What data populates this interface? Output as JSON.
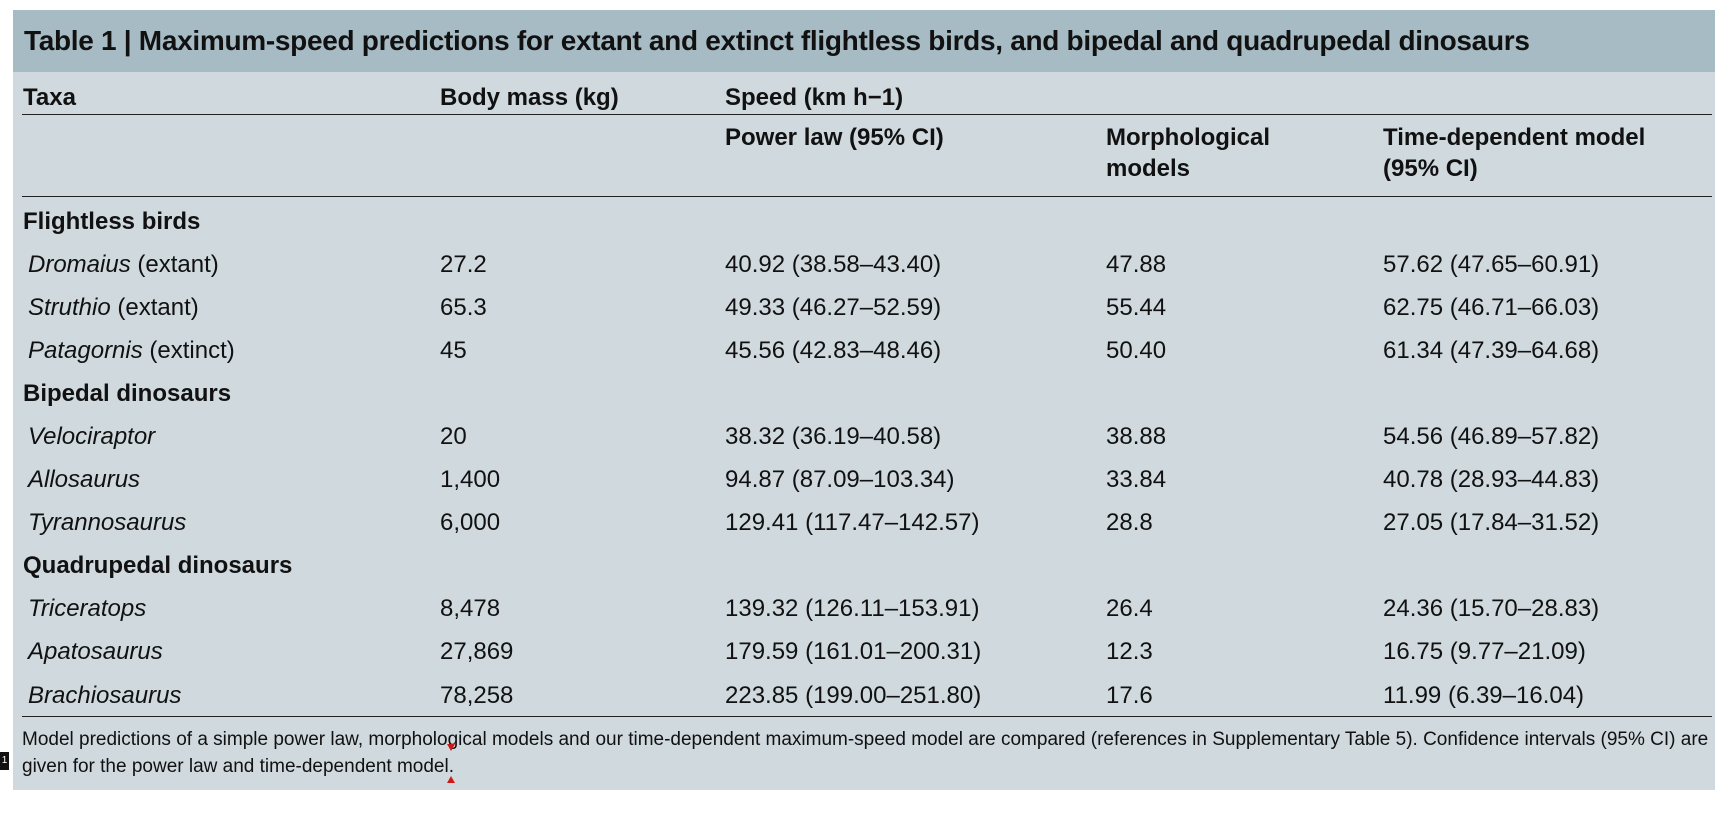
{
  "table": {
    "title": "Table 1 | Maximum-speed predictions for extant and extinct flightless birds, and bipedal and quadrupedal dinosaurs",
    "headers": {
      "taxa": "Taxa",
      "body_mass": "Body mass (kg)",
      "speed": "Speed (km h−1)",
      "power_law": "Power law (95% CI)",
      "morph_line1": "Morphological",
      "morph_line2": "models",
      "time_line1": "Time-dependent model",
      "time_line2": "(95% CI)"
    },
    "groups": [
      {
        "label": "Flightless birds",
        "rows": [
          {
            "name": "Dromaius",
            "note": " (extant)",
            "mass": "27.2",
            "power": "40.92 (38.58–43.40)",
            "morph": "47.88",
            "time": "57.62 (47.65–60.91)"
          },
          {
            "name": "Struthio",
            "note": " (extant)",
            "mass": "65.3",
            "power": "49.33 (46.27–52.59)",
            "morph": "55.44",
            "time": "62.75 (46.71–66.03)"
          },
          {
            "name": "Patagornis",
            "note": " (extinct)",
            "mass": "45",
            "power": "45.56 (42.83–48.46)",
            "morph": "50.40",
            "time": "61.34 (47.39–64.68)"
          }
        ]
      },
      {
        "label": "Bipedal dinosaurs",
        "rows": [
          {
            "name": "Velociraptor",
            "note": "",
            "mass": "20",
            "power": "38.32 (36.19–40.58)",
            "morph": "38.88",
            "time": "54.56 (46.89–57.82)"
          },
          {
            "name": "Allosaurus",
            "note": "",
            "mass": "1,400",
            "power": "94.87 (87.09–103.34)",
            "morph": "33.84",
            "time": "40.78 (28.93–44.83)"
          },
          {
            "name": "Tyrannosaurus",
            "note": "",
            "mass": "6,000",
            "power": "129.41 (117.47–142.57)",
            "morph": "28.8",
            "time": "27.05 (17.84–31.52)"
          }
        ]
      },
      {
        "label": "Quadrupedal dinosaurs",
        "rows": [
          {
            "name": "Triceratops",
            "note": "",
            "mass": "8,478",
            "power": "139.32 (126.11–153.91)",
            "morph": "26.4",
            "time": "24.36 (15.70–28.83)"
          },
          {
            "name": "Apatosaurus",
            "note": "",
            "mass": "27,869",
            "power": "179.59 (161.01–200.31)",
            "morph": "12.3",
            "time": "16.75 (9.77–21.09)"
          },
          {
            "name": "Brachiosaurus",
            "note": "",
            "mass": "78,258",
            "power": "223.85 (199.00–251.80)",
            "morph": "17.6",
            "time": "11.99 (6.39–16.04)"
          }
        ]
      }
    ],
    "caption_line1": "Model predictions of a simple power law, morphological models and our time-dependent maximum-speed model are compared (references in Supplementary Table 5). Confidence intervals (95% CI) are",
    "caption_line2": "given for the power law and time-dependent model."
  },
  "page_marker": "1",
  "colors": {
    "title_bar": "#a7bbc4",
    "panel": "#cfd9de",
    "marker_triangles": "#d01818"
  }
}
